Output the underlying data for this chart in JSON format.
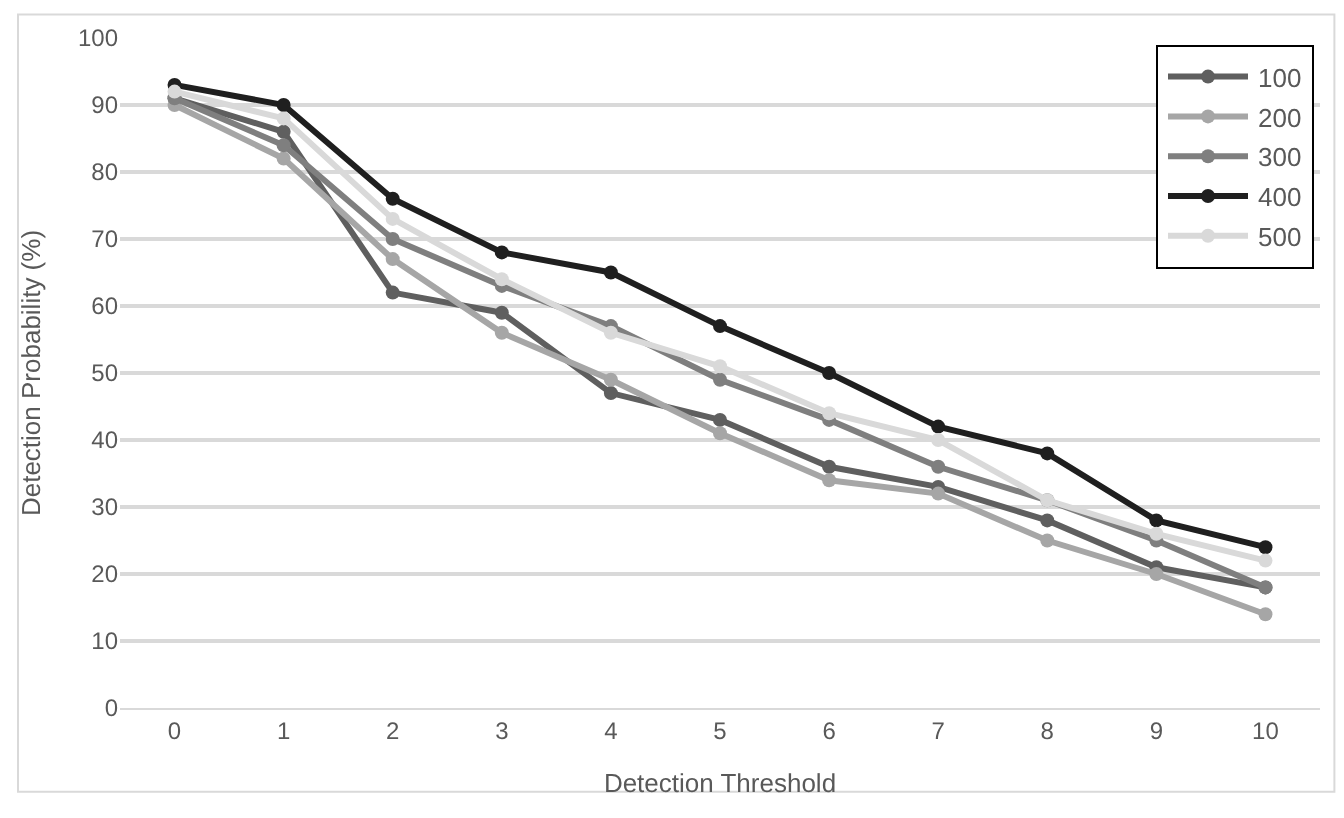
{
  "chart_data": {
    "type": "line",
    "xlabel": "Detection Threshold",
    "ylabel": "Detection Probability (%)",
    "categories": [
      "0",
      "1",
      "2",
      "3",
      "4",
      "5",
      "6",
      "7",
      "8",
      "9",
      "10"
    ],
    "series": [
      {
        "name": "100",
        "color": "#5f5f5f",
        "values": [
          91,
          86,
          62,
          59,
          47,
          43,
          36,
          33,
          28,
          21,
          18
        ]
      },
      {
        "name": "200",
        "color": "#a6a6a6",
        "values": [
          90,
          82,
          67,
          56,
          49,
          41,
          34,
          32,
          25,
          20,
          14
        ]
      },
      {
        "name": "300",
        "color": "#7f7f7f",
        "values": [
          91,
          84,
          70,
          63,
          57,
          49,
          43,
          36,
          31,
          25,
          18
        ]
      },
      {
        "name": "400",
        "color": "#1f1f1f",
        "values": [
          93,
          90,
          76,
          68,
          65,
          57,
          50,
          42,
          38,
          28,
          24
        ]
      },
      {
        "name": "500",
        "color": "#d9d9d9",
        "values": [
          92,
          88,
          73,
          64,
          56,
          51,
          44,
          40,
          31,
          26,
          22
        ]
      }
    ],
    "ylim": [
      0,
      100
    ],
    "yticks": [
      0,
      10,
      20,
      30,
      40,
      50,
      60,
      70,
      80,
      90,
      100
    ],
    "grid": "y",
    "legend": "top right",
    "marker": "circle",
    "line_style": "solid"
  }
}
